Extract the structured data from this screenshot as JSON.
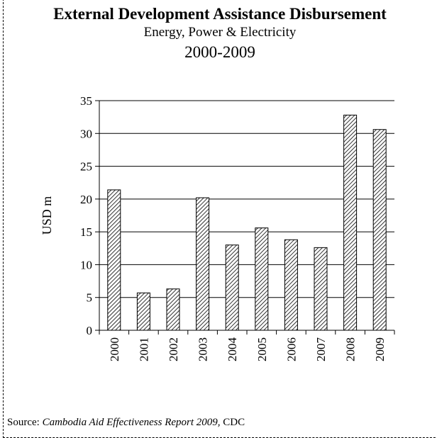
{
  "chart_data": {
    "type": "bar",
    "title": "External Development Assistance Disbursement",
    "subtitle": "Energy, Power & Electricity",
    "period": "2000-2009",
    "xlabel": "",
    "ylabel": "USD m",
    "categories": [
      "2000",
      "2001",
      "2002",
      "2003",
      "2004",
      "2005",
      "2006",
      "2007",
      "2008",
      "2009"
    ],
    "values": [
      21.4,
      5.7,
      6.3,
      20.2,
      13.0,
      15.6,
      13.8,
      12.6,
      32.8,
      30.6
    ],
    "ylim": [
      0,
      35
    ],
    "yticks": [
      0,
      5,
      10,
      15,
      20,
      25,
      30,
      35
    ],
    "grid": true,
    "legend": "none",
    "bar_fill": "diagonal-hatch",
    "colors": {
      "bar_stroke": "#000000",
      "hatch": "#000000",
      "grid": "#000000",
      "background": "#ffffff"
    }
  },
  "source": {
    "prefix": "Source: ",
    "title": "Cambodia Aid Effectiveness Report 2009,",
    "suffix": " CDC"
  }
}
